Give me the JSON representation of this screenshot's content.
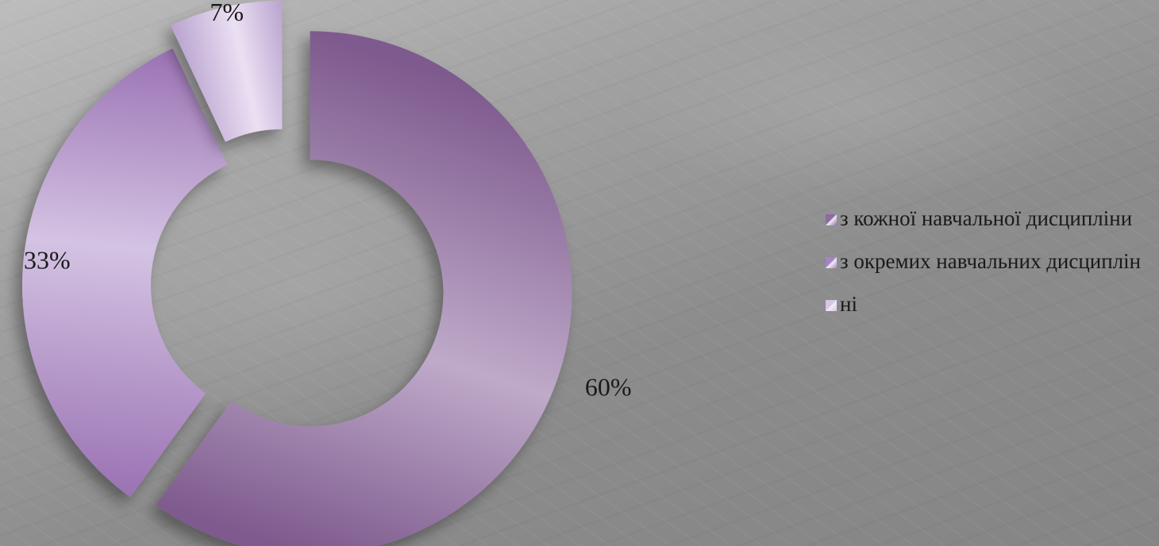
{
  "chart_data": {
    "type": "pie",
    "variant": "doughnut-exploded",
    "title": "",
    "slices": [
      {
        "label": "з кожної навчальної дисципліни",
        "value": 60,
        "display": "60%",
        "color_dark": "#7e5a8e",
        "color_light": "#bfaac9"
      },
      {
        "label": "з окремих навчальних дисциплін",
        "value": 33,
        "display": "33%",
        "color_dark": "#9a72b3",
        "color_light": "#d4c3e3"
      },
      {
        "label": "ні",
        "value": 7,
        "display": "7%",
        "color_dark": "#b9a3cf",
        "color_light": "#ebe0f3"
      }
    ],
    "legend_position": "right"
  },
  "legend": {
    "items": [
      {
        "label": "з кожної навчальної дисципліни"
      },
      {
        "label": "з окремих навчальних дисциплін"
      },
      {
        "label": "ні"
      }
    ]
  },
  "colors": {
    "swatch_1": "#8d6aa0",
    "swatch_2": "#a683c6",
    "swatch_3": "#d6c6e6"
  }
}
